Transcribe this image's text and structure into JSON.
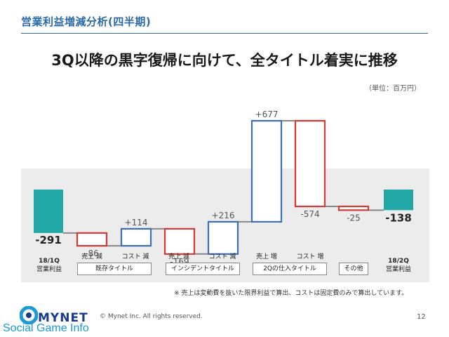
{
  "header": {
    "title": "営業利益増減分析(四半期)"
  },
  "main_title": "3Q以降の黒字復帰に向けて、全タイトル着実に推移",
  "unit_note": "（単位：百万円）",
  "segments": [
    {
      "label": "売上 減",
      "color": "#d33a36"
    },
    {
      "label": "コスト 減",
      "color": "#3d6fb6"
    },
    {
      "label": "売上 減",
      "color": "#d33a36"
    },
    {
      "label": "コスト 減",
      "color": "#3d6fb6"
    },
    {
      "label": "売上 増",
      "color": "#3d6fb6"
    },
    {
      "label": "コスト 増",
      "color": "#d33a36"
    }
  ],
  "groups": [
    "既存タイトル",
    "インシデントタイトル",
    "2Qの仕入タイトル",
    "その他"
  ],
  "axis_start": {
    "line1": "18/1Q",
    "line2": "営業利益"
  },
  "axis_end": {
    "line1": "18/2Q",
    "line2": "営業利益"
  },
  "footnote": "※ 売上は変動費を抜いた限界利益で算出、コストは固定費のみで算出しています。",
  "footer": {
    "copyright": "© Mynet Inc. All rights reserved.",
    "page": "12"
  },
  "logo": {
    "brand": "MYNET",
    "sub": "Social Game Info"
  },
  "chart_data": {
    "type": "waterfall",
    "title": "",
    "bars": [
      {
        "name": "18/1Q 営業利益",
        "kind": "total",
        "value": -291,
        "label": "-291"
      },
      {
        "name": "既存タイトル 売上 減",
        "kind": "change",
        "value": -86,
        "label": "-86"
      },
      {
        "name": "既存タイトル コスト 減",
        "kind": "change",
        "value": 114,
        "label": "+114"
      },
      {
        "name": "インシデントタイトル 売上 減",
        "kind": "change",
        "value": -169,
        "label": "-169"
      },
      {
        "name": "インシデントタイトル コスト 減",
        "kind": "change",
        "value": 216,
        "label": "+216"
      },
      {
        "name": "2Qの仕入タイトル 売上 増",
        "kind": "change",
        "value": 677,
        "label": "+677"
      },
      {
        "name": "2Qの仕入タイトル コスト 増",
        "kind": "change",
        "value": -574,
        "label": "-574"
      },
      {
        "name": "その他",
        "kind": "change",
        "value": -25,
        "label": "-25"
      },
      {
        "name": "18/2Q 営業利益",
        "kind": "total",
        "value": -138,
        "label": "-138"
      }
    ],
    "colors": {
      "total": "#23a8a8",
      "red": "#d33a36",
      "blue": "#3d6fb6"
    }
  }
}
